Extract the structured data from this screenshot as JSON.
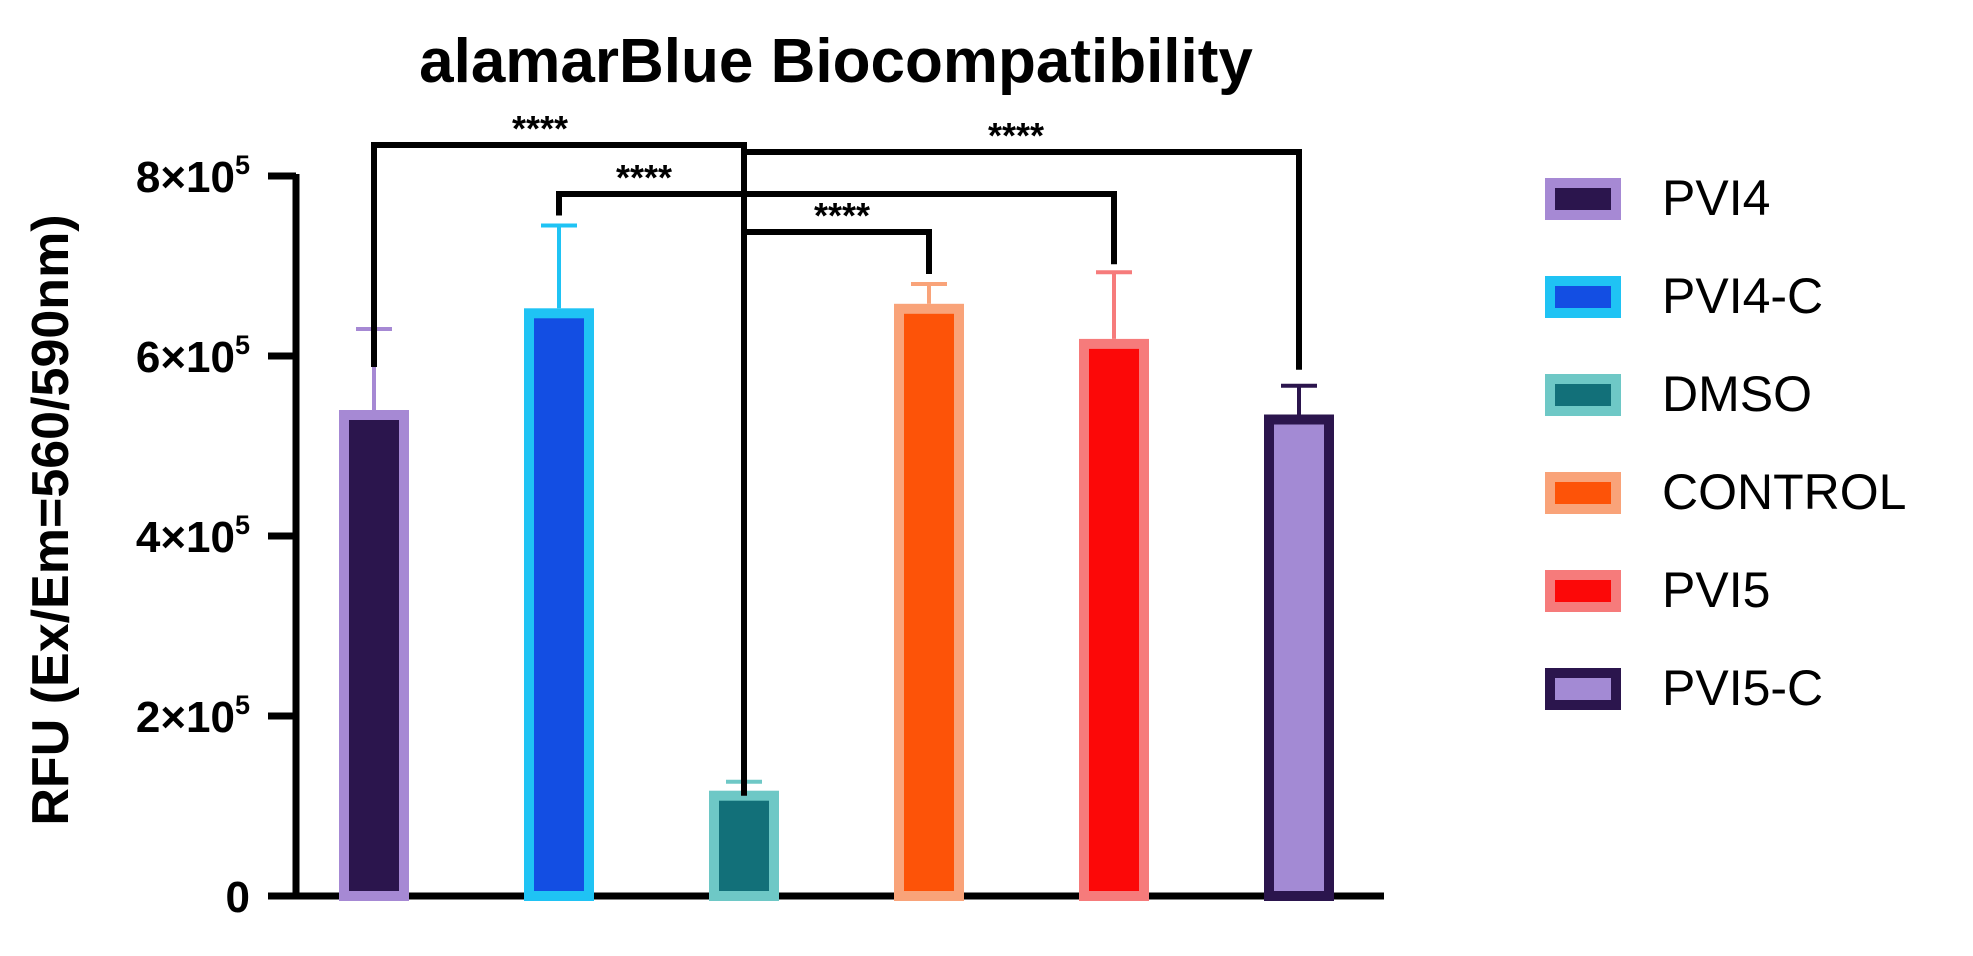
{
  "chart_data": {
    "type": "bar",
    "title": "alamarBlue Biocompatibility",
    "xlabel": "",
    "ylabel": "RFU (Ex/Em=560/590nm)",
    "ylim": [
      0,
      800000
    ],
    "yticks": [
      {
        "value": 0,
        "base": "0",
        "exp": ""
      },
      {
        "value": 200000,
        "base": "2×10",
        "exp": "5"
      },
      {
        "value": 400000,
        "base": "4×10",
        "exp": "5"
      },
      {
        "value": 600000,
        "base": "6×10",
        "exp": "5"
      },
      {
        "value": 800000,
        "base": "8×10",
        "exp": "5"
      }
    ],
    "categories": [
      "PVI4",
      "PVI4-C",
      "DMSO",
      "CONTROL",
      "PVI5",
      "PVI5-C"
    ],
    "values": [
      540000,
      653000,
      117000,
      658000,
      619000,
      535000
    ],
    "error": [
      90000,
      92000,
      10000,
      22000,
      74000,
      32000
    ],
    "colors": {
      "PVI4": {
        "fill": "#2b154d",
        "edge": "#a689d4"
      },
      "PVI4-C": {
        "fill": "#134ee3",
        "edge": "#1fc3f4"
      },
      "DMSO": {
        "fill": "#127079",
        "edge": "#6ec8c6"
      },
      "CONTROL": {
        "fill": "#fd5308",
        "edge": "#f9a379"
      },
      "PVI5": {
        "fill": "#fc0808",
        "edge": "#f67b7b"
      },
      "PVI5-C": {
        "fill": "#a38ad4",
        "edge": "#2b154d"
      }
    },
    "legend": [
      "PVI4",
      "PVI4-C",
      "DMSO",
      "CONTROL",
      "PVI5",
      "PVI5-C"
    ],
    "legend_position": "right",
    "significance": [
      {
        "from": "PVI4",
        "to": "DMSO",
        "label": "****"
      },
      {
        "from": "PVI4-C",
        "to": "PVI5",
        "label": "****"
      },
      {
        "from": "DMSO",
        "to": "CONTROL",
        "label": "****"
      },
      {
        "from": "DMSO",
        "to": "PVI5-C",
        "label": "****"
      }
    ]
  }
}
